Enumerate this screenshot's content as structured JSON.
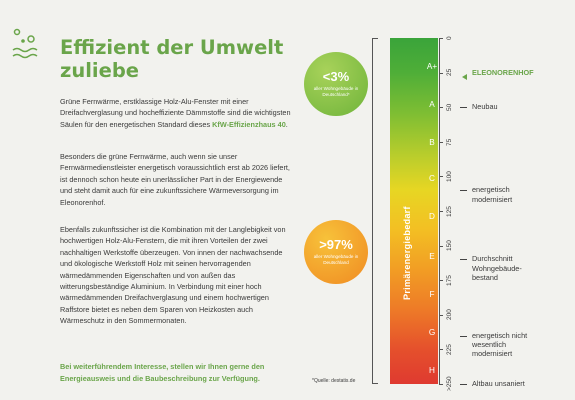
{
  "logo": {
    "icon": "leaf-wave-logo-icon"
  },
  "heading": {
    "title": "Effizient der Umwelt zuliebe"
  },
  "body": {
    "p1_a": "Grüne Fernwärme, erstklassige Holz-Alu-Fenster mit einer Dreifachverglasung und hocheffiziente Dämmstoffe sind die wichtigsten Säulen für den energetischen Standard dieses ",
    "p1_hl": "KfW-Effizienzhaus 40",
    "p1_b": ".",
    "p2": "Besonders die grüne Fernwärme, auch wenn sie unser Fernwärmedienstleister energetisch voraussichtlich erst ab 2026 liefert, ist dennoch schon heute ein unerlässlicher Part in der Energiewende und steht damit auch für eine zukunftssichere Wärmeversorgung im Eleonorenhof.",
    "p3": "Ebenfalls zukunftssicher ist die Kombination mit der Langlebigkeit von hochwertigen Holz-Alu-Fenstern, die mit ihren Vorteilen der zwei nachhaltigen Werkstoffe überzeugen. Von innen der nachwachsende und ökologische Werkstoff Holz mit seinen hervorragenden wärmedämmenden Eigenschaften und von außen das witterungsbeständige Aluminium. In Verbindung mit einer hoch wärmedämmenden Dreifachverglasung und einem hochwertigen Raffstore bietet es neben dem Sparen von Heizkosten auch Wärmeschutz in den Sommermonaten.",
    "cta": "Bei weiterführendem Interesse, stellen wir Ihnen gerne den Energieausweis und die Baubeschreibung zur Verfügung."
  },
  "stats": [
    {
      "value": "<3%",
      "label": "aller Wohngebäude in Deutschland*",
      "color": "#8cc63f"
    },
    {
      "value": ">97%",
      "label": "aller Wohngebäude in Deutschland",
      "color": "#f3a12a"
    }
  ],
  "source": "*Quelle: destatis.de",
  "scale": {
    "title": "Primärenergiebedarf",
    "classes": [
      "A+",
      "A",
      "B",
      "C",
      "D",
      "E",
      "F",
      "G",
      "H"
    ],
    "ticks": [
      "0",
      "25",
      "50",
      "75",
      "100",
      "125",
      "150",
      "175",
      "200",
      "225",
      ">250"
    ],
    "annotations": [
      {
        "text": "ELEONORENHOF",
        "value": 25
      },
      {
        "text": "Neubau",
        "value": 50
      },
      {
        "text": "energetisch modernisiert",
        "value": 110
      },
      {
        "text": "Durchschnitt Wohngebäude-bestand",
        "value": 160
      },
      {
        "text": "energetisch nicht wesentlich modernisiert",
        "value": 215
      },
      {
        "text": "Altbau unsaniert",
        "value": 250
      }
    ]
  }
}
